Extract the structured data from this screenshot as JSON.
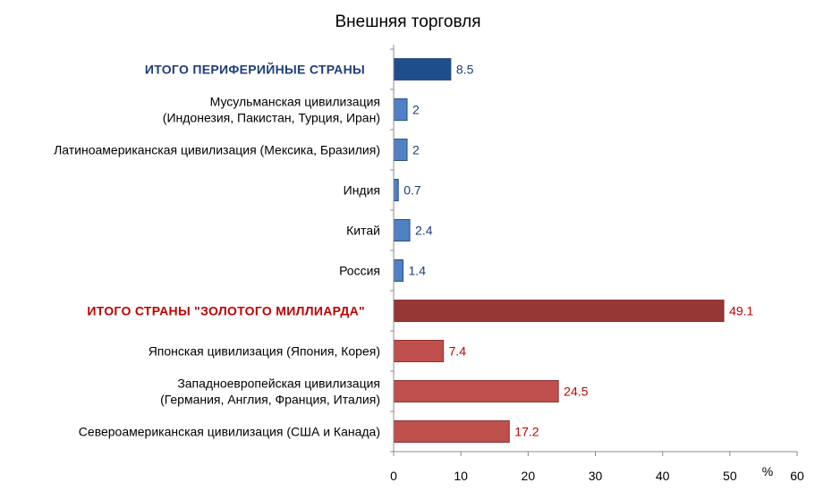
{
  "chart_data": {
    "type": "bar",
    "orientation": "horizontal",
    "title": "Внешняя торговля",
    "xlabel": "%",
    "ylabel": "",
    "xlim": [
      0,
      60
    ],
    "ticks": [
      "0",
      "10",
      "20",
      "30",
      "40",
      "50",
      "60"
    ],
    "grid": false,
    "legend": "none",
    "colors": {
      "total_blue": "#1f4e8c",
      "blue": "#4f81c4",
      "total_red": "#953735",
      "red": "#c0504d",
      "label_blue": "#1f3d7a",
      "label_red": "#c00000"
    },
    "bars": [
      {
        "label_lines": [
          "ИТОГО ПЕРИФЕРИЙНЫЕ  СТРАНЫ"
        ],
        "value": 8.5,
        "value_label": "8.5",
        "style": "total_blue"
      },
      {
        "label_lines": [
          "Мусульманская цивилизация",
          "(Индонезия, Пакистан, Турция, Иран)"
        ],
        "value": 2,
        "value_label": "2",
        "style": "blue"
      },
      {
        "label_lines": [
          "Латиноамериканская цивилизация (Мексика, Бразилия)"
        ],
        "value": 2,
        "value_label": "2",
        "style": "blue"
      },
      {
        "label_lines": [
          "Индия"
        ],
        "value": 0.7,
        "value_label": "0.7",
        "style": "blue"
      },
      {
        "label_lines": [
          "Китай"
        ],
        "value": 2.4,
        "value_label": "2.4",
        "style": "blue"
      },
      {
        "label_lines": [
          "Россия"
        ],
        "value": 1.4,
        "value_label": "1.4",
        "style": "blue"
      },
      {
        "label_lines": [
          "ИТОГО СТРАНЫ  \"ЗОЛОТОГО  МИЛЛИАРДА\""
        ],
        "value": 49.1,
        "value_label": "49.1",
        "style": "total_red"
      },
      {
        "label_lines": [
          "Японская цивилизация (Япония, Корея)"
        ],
        "value": 7.4,
        "value_label": "7.4",
        "style": "red"
      },
      {
        "label_lines": [
          "Западноевропейская цивилизация",
          "(Германия, Англия, Франция, Италия)"
        ],
        "value": 24.5,
        "value_label": "24.5",
        "style": "red"
      },
      {
        "label_lines": [
          "Североамериканская цивилизация (США и Канада)"
        ],
        "value": 17.2,
        "value_label": "17.2",
        "style": "red"
      }
    ]
  }
}
